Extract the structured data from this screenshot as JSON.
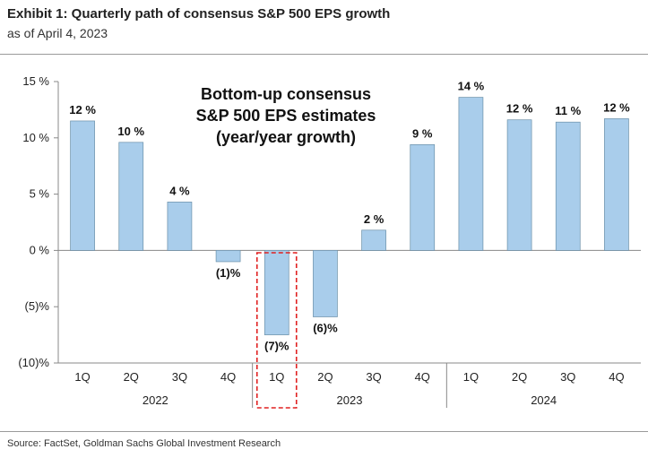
{
  "header": {
    "title": "Exhibit 1: Quarterly path of consensus S&P 500 EPS growth",
    "subtitle": "as of April 4, 2023"
  },
  "footer": {
    "source": "Source: FactSet, Goldman Sachs Global Investment Research"
  },
  "chart_data": {
    "type": "bar",
    "annotation": [
      "Bottom-up consensus",
      "S&P 500 EPS estimates",
      "(year/year growth)"
    ],
    "categories": [
      "1Q",
      "2Q",
      "3Q",
      "4Q",
      "1Q",
      "2Q",
      "3Q",
      "4Q",
      "1Q",
      "2Q",
      "3Q",
      "4Q"
    ],
    "years": [
      {
        "label": "2022",
        "start": 0,
        "count": 4
      },
      {
        "label": "2023",
        "start": 4,
        "count": 4
      },
      {
        "label": "2024",
        "start": 8,
        "count": 4
      }
    ],
    "values": [
      11.5,
      9.6,
      4.3,
      -1.0,
      -7.5,
      -5.9,
      1.8,
      9.4,
      13.6,
      11.6,
      11.4,
      11.7
    ],
    "data_labels": [
      "12 %",
      "10 %",
      "4 %",
      "(1)%",
      "(7)%",
      "(6)%",
      "2 %",
      "9 %",
      "14 %",
      "12 %",
      "11 %",
      "12 %"
    ],
    "ylim": [
      -10,
      15
    ],
    "yticks": [
      15,
      10,
      5,
      0,
      -5,
      -10
    ],
    "ytick_labels": [
      "15 %",
      "10 %",
      "5 %",
      "0 %",
      "(5)%",
      "(10)%"
    ],
    "highlight_index": 4,
    "colors": {
      "bar": "#a9cdeb",
      "bar_edge": "#6a8fa8",
      "highlight": "#e02020",
      "axis": "#888888"
    },
    "grid": false
  }
}
